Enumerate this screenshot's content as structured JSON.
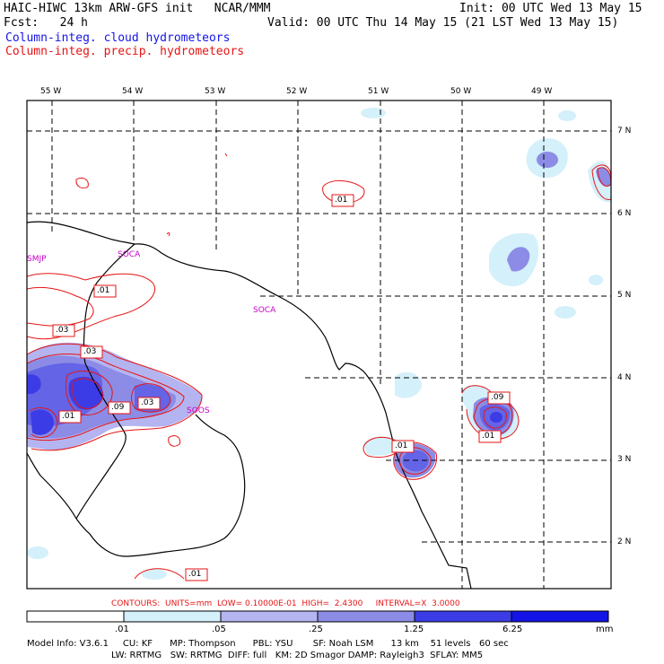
{
  "header": {
    "line1_left": "HAIC-HIWC 13km ARW-GFS init   NCAR/MMM",
    "line1_right": "Init: 00 UTC Wed 13 May 15",
    "line2_left": "Fcst:   24 h",
    "line2_right": "Valid: 00 UTC Thu 14 May 15 (21 LST Wed 13 May 15)",
    "field1": "Column-integ. cloud hydrometeors",
    "field2": "Column-integ. precip. hydrometeors"
  },
  "colors": {
    "cloud_field": "#1414e6",
    "precip_field": "#e61414",
    "station_labels": "#c800c8"
  },
  "lon_labels": [
    "55 W",
    "54 W",
    "53 W",
    "52 W",
    "51 W",
    "50 W",
    "49 W"
  ],
  "lat_labels": [
    "7 N",
    "6 N",
    "5 N",
    "4 N",
    "3 N",
    "2 N"
  ],
  "stations": [
    "SMJP",
    "SOCA",
    "SOCA",
    "SOOS"
  ],
  "contour_labels": [
    ".01",
    ".01",
    ".03",
    ".03",
    ".09",
    ".03",
    ".01",
    ".01",
    ".09",
    ".01",
    ".01"
  ],
  "contours_info": "CONTOURS:  UNITS=mm  LOW= 0.10000E-01  HIGH=  2.4300     INTERVAL=X  3.0000",
  "colorbar": {
    "ticks": [
      ".01",
      ".05",
      ".25",
      "1.25",
      "6.25"
    ],
    "unit": "mm",
    "bin_colors": [
      "#ffffff",
      "#d4f0fa",
      "#b4b4f0",
      "#8c8ce6",
      "#6464e6",
      "#3c3ce6",
      "#1414e6"
    ]
  },
  "footer": {
    "line1": "Model Info: V3.6.1     CU: KF      MP: Thompson      PBL: YSU       SF: Noah LSM      13 km    51 levels   60 sec",
    "line2": "LW: RRTMG   SW: RRTMG  DIFF: full   KM: 2D Smagor DAMP: Rayleigh3  SFLAY: MM5"
  }
}
